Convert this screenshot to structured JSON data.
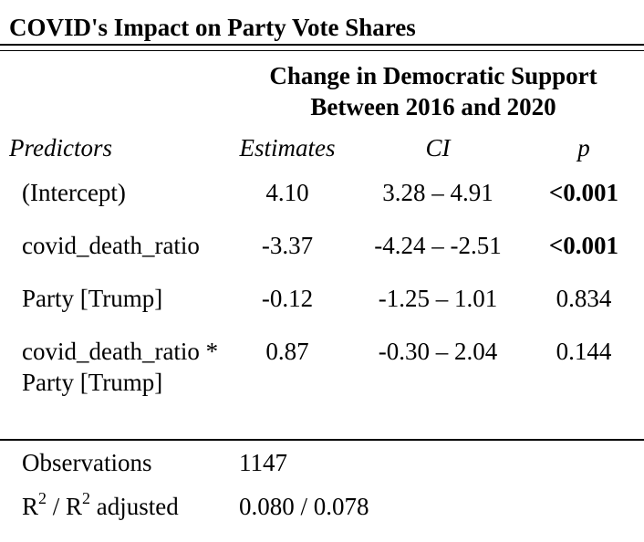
{
  "caption": "COVID's Impact on Party Vote Shares",
  "dependent_variable": {
    "line1": "Change in Democratic Support",
    "line2": "Between 2016 and 2020"
  },
  "headers": {
    "predictors": "Predictors",
    "estimates": "Estimates",
    "ci": "CI",
    "p": "p"
  },
  "rows": [
    {
      "predictor": "(Intercept)",
      "estimate": "4.10",
      "ci": "3.28 – 4.91",
      "p": "<0.001",
      "p_bold": true
    },
    {
      "predictor": "covid_death_ratio",
      "estimate": "-3.37",
      "ci": "-4.24 – -2.51",
      "p": "<0.001",
      "p_bold": true
    },
    {
      "predictor": "Party [Trump]",
      "estimate": "-0.12",
      "ci": "-1.25 – 1.01",
      "p": "0.834",
      "p_bold": false
    },
    {
      "predictor": "covid_death_ratio * Party [Trump]",
      "estimate": "0.87",
      "ci": "-0.30 – 2.04",
      "p": "0.144",
      "p_bold": false
    }
  ],
  "stats": {
    "observations": {
      "label": "Observations",
      "value": "1147"
    },
    "r2": {
      "label_r": "R",
      "label_sup": "2",
      "label_sep": " / R",
      "label_sup2": "2",
      "label_tail": " adjusted",
      "value": "0.080 / 0.078"
    }
  }
}
